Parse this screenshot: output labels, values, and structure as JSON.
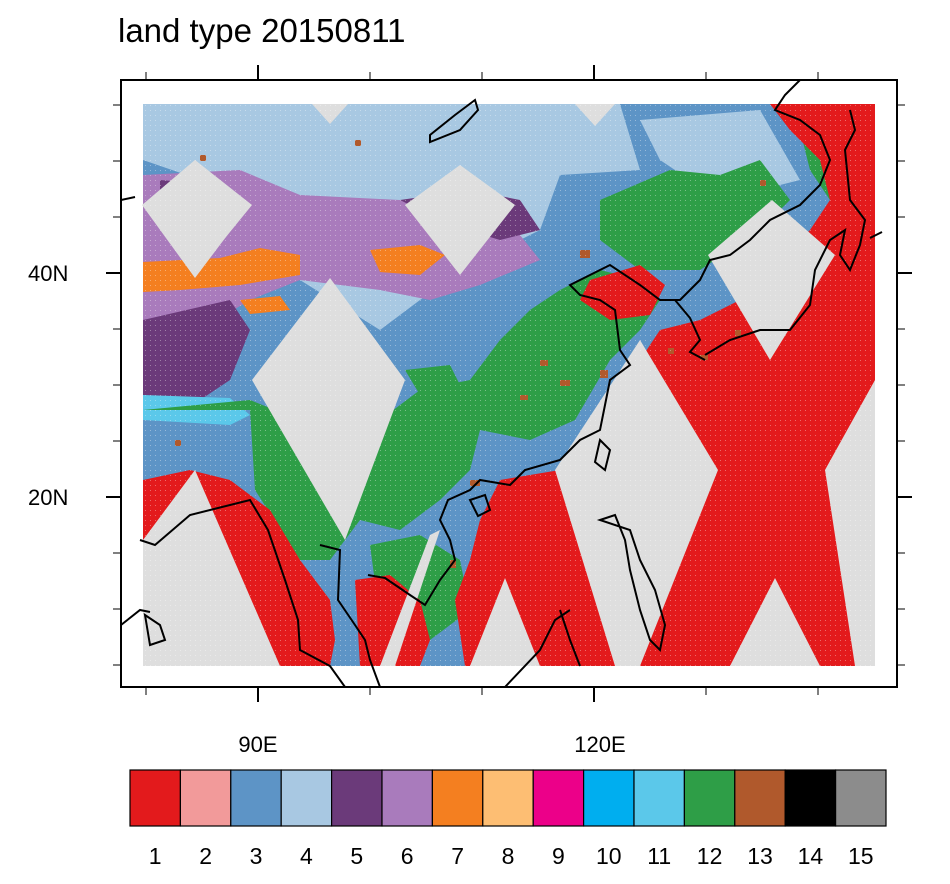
{
  "title": "land type 20150811",
  "map": {
    "lon_labels": [
      "90E",
      "120E"
    ],
    "lat_labels": [
      "40N",
      "20N"
    ]
  },
  "legend": {
    "classes": [
      {
        "label": "1",
        "color": "#e31a1c"
      },
      {
        "label": "2",
        "color": "#f29a9a"
      },
      {
        "label": "3",
        "color": "#5d94c6"
      },
      {
        "label": "4",
        "color": "#a8c8e2"
      },
      {
        "label": "5",
        "color": "#6b3a7a"
      },
      {
        "label": "6",
        "color": "#a97bbc"
      },
      {
        "label": "7",
        "color": "#f47f20"
      },
      {
        "label": "8",
        "color": "#fdbe73"
      },
      {
        "label": "9",
        "color": "#ec0089"
      },
      {
        "label": "10",
        "color": "#00aeef"
      },
      {
        "label": "11",
        "color": "#5bc8ea"
      },
      {
        "label": "12",
        "color": "#2e9e47"
      },
      {
        "label": "13",
        "color": "#b0592c"
      },
      {
        "label": "14",
        "color": "#000000"
      },
      {
        "label": "15",
        "color": "#8c8c8c"
      }
    ],
    "missing_color": "#dedede"
  }
}
